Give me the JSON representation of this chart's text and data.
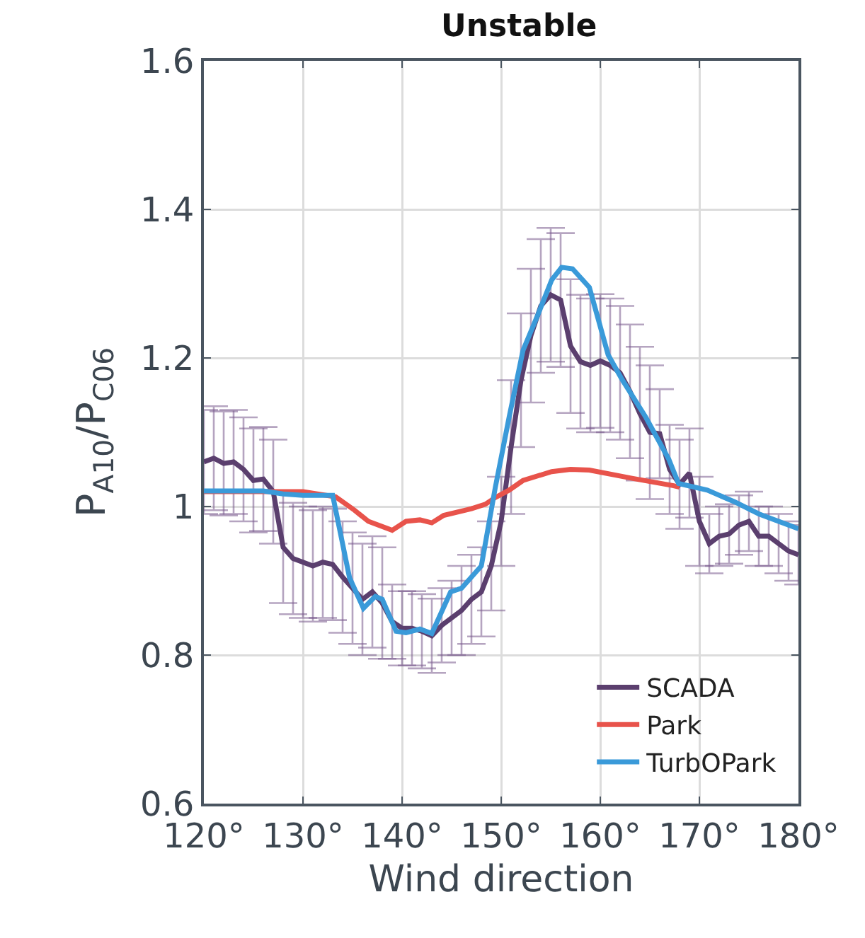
{
  "chart_data": {
    "type": "line",
    "title": "Unstable",
    "xlabel": "Wind direction",
    "ylabel": "P$_{A10}$/P$_{C06}$",
    "xlim": [
      120,
      180
    ],
    "xticks": [
      {
        "value": 120,
        "label": "120°"
      },
      {
        "value": 130,
        "label": "130°"
      },
      {
        "value": 140,
        "label": "140°"
      },
      {
        "value": 150,
        "label": "150°"
      },
      {
        "value": 160,
        "label": "160°"
      },
      {
        "value": 170,
        "label": "170°"
      },
      {
        "value": 180,
        "label": "180°"
      }
    ],
    "ylim": [
      0.6,
      1.6
    ],
    "yticks": [
      0.6,
      0.8,
      1,
      1.2,
      1.4,
      1.6
    ],
    "grid": true,
    "legend": "bottom right",
    "line_style": "solid",
    "marker": "none",
    "series": [
      {
        "name": "SCADA",
        "color": "#5b3f6e",
        "x": [
          120,
          121,
          122,
          123,
          124,
          125,
          126,
          127,
          128,
          129,
          130,
          131,
          132,
          133,
          134,
          135,
          136,
          137,
          138,
          139,
          140,
          141,
          142,
          143,
          144,
          145,
          146,
          147,
          148,
          149,
          150,
          151,
          152,
          153,
          154,
          155,
          156,
          157,
          158,
          159,
          160,
          161,
          162,
          163,
          164,
          165,
          166,
          167,
          168,
          169,
          170,
          171,
          172,
          173,
          174,
          175,
          176,
          177,
          178,
          179,
          180
        ],
        "values": [
          1.06,
          1.065,
          1.058,
          1.06,
          1.05,
          1.035,
          1.037,
          1.02,
          0.945,
          0.93,
          0.925,
          0.92,
          0.925,
          0.922,
          0.905,
          0.89,
          0.875,
          0.885,
          0.87,
          0.845,
          0.836,
          0.836,
          0.832,
          0.826,
          0.84,
          0.85,
          0.86,
          0.875,
          0.885,
          0.92,
          0.98,
          1.08,
          1.17,
          1.23,
          1.27,
          1.285,
          1.278,
          1.216,
          1.195,
          1.19,
          1.196,
          1.19,
          1.18,
          1.155,
          1.125,
          1.1,
          1.098,
          1.05,
          1.03,
          1.045,
          0.98,
          0.95,
          0.96,
          0.963,
          0.975,
          0.98,
          0.96,
          0.96,
          0.95,
          0.94,
          0.935
        ],
        "errors": [
          0.07,
          0.07,
          0.07,
          0.07,
          0.07,
          0.07,
          0.07,
          0.07,
          0.075,
          0.075,
          0.075,
          0.075,
          0.075,
          0.075,
          0.075,
          0.075,
          0.075,
          0.075,
          0.075,
          0.05,
          0.05,
          0.05,
          0.05,
          0.05,
          0.05,
          0.05,
          0.06,
          0.06,
          0.06,
          0.06,
          0.06,
          0.09,
          0.09,
          0.09,
          0.09,
          0.09,
          0.09,
          0.09,
          0.09,
          0.09,
          0.09,
          0.09,
          0.09,
          0.09,
          0.09,
          0.09,
          0.06,
          0.06,
          0.06,
          0.06,
          0.06,
          0.04,
          0.04,
          0.04,
          0.04,
          0.04,
          0.04,
          0.04,
          0.04,
          0.04,
          0.04
        ]
      },
      {
        "name": "Park",
        "color": "#e8534b",
        "x": [
          120,
          126,
          130,
          133.3,
          135.2,
          136.6,
          139,
          140.4,
          141.8,
          143,
          144.2,
          147,
          148.4,
          149.4,
          150.8,
          152.2,
          155.1,
          157,
          158.9,
          163.2,
          167.4,
          168
        ],
        "values": [
          1.02,
          1.02,
          1.02,
          1.013,
          0.995,
          0.98,
          0.968,
          0.98,
          0.982,
          0.978,
          0.988,
          0.997,
          1.003,
          1.012,
          1.022,
          1.035,
          1.047,
          1.05,
          1.049,
          1.038,
          1.028,
          1.026
        ]
      },
      {
        "name": "TurbOPark",
        "color": "#3a9ad9",
        "x": [
          120,
          126,
          128,
          130,
          133,
          134.7,
          136.1,
          137.3,
          138,
          139.4,
          140.4,
          141.8,
          143,
          144.9,
          146,
          148,
          149.4,
          150.8,
          152.2,
          153.7,
          155.1,
          156.1,
          157.2,
          158.9,
          160.8,
          162.2,
          164.6,
          166.9,
          167.9,
          170.8,
          173.6,
          176,
          180
        ],
        "values": [
          1.021,
          1.021,
          1.017,
          1.015,
          1.015,
          0.904,
          0.863,
          0.879,
          0.875,
          0.832,
          0.83,
          0.835,
          0.829,
          0.885,
          0.89,
          0.92,
          1.025,
          1.12,
          1.21,
          1.258,
          1.305,
          1.322,
          1.32,
          1.295,
          1.204,
          1.171,
          1.12,
          1.064,
          1.031,
          1.022,
          1.006,
          0.99,
          0.97
        ]
      }
    ]
  }
}
